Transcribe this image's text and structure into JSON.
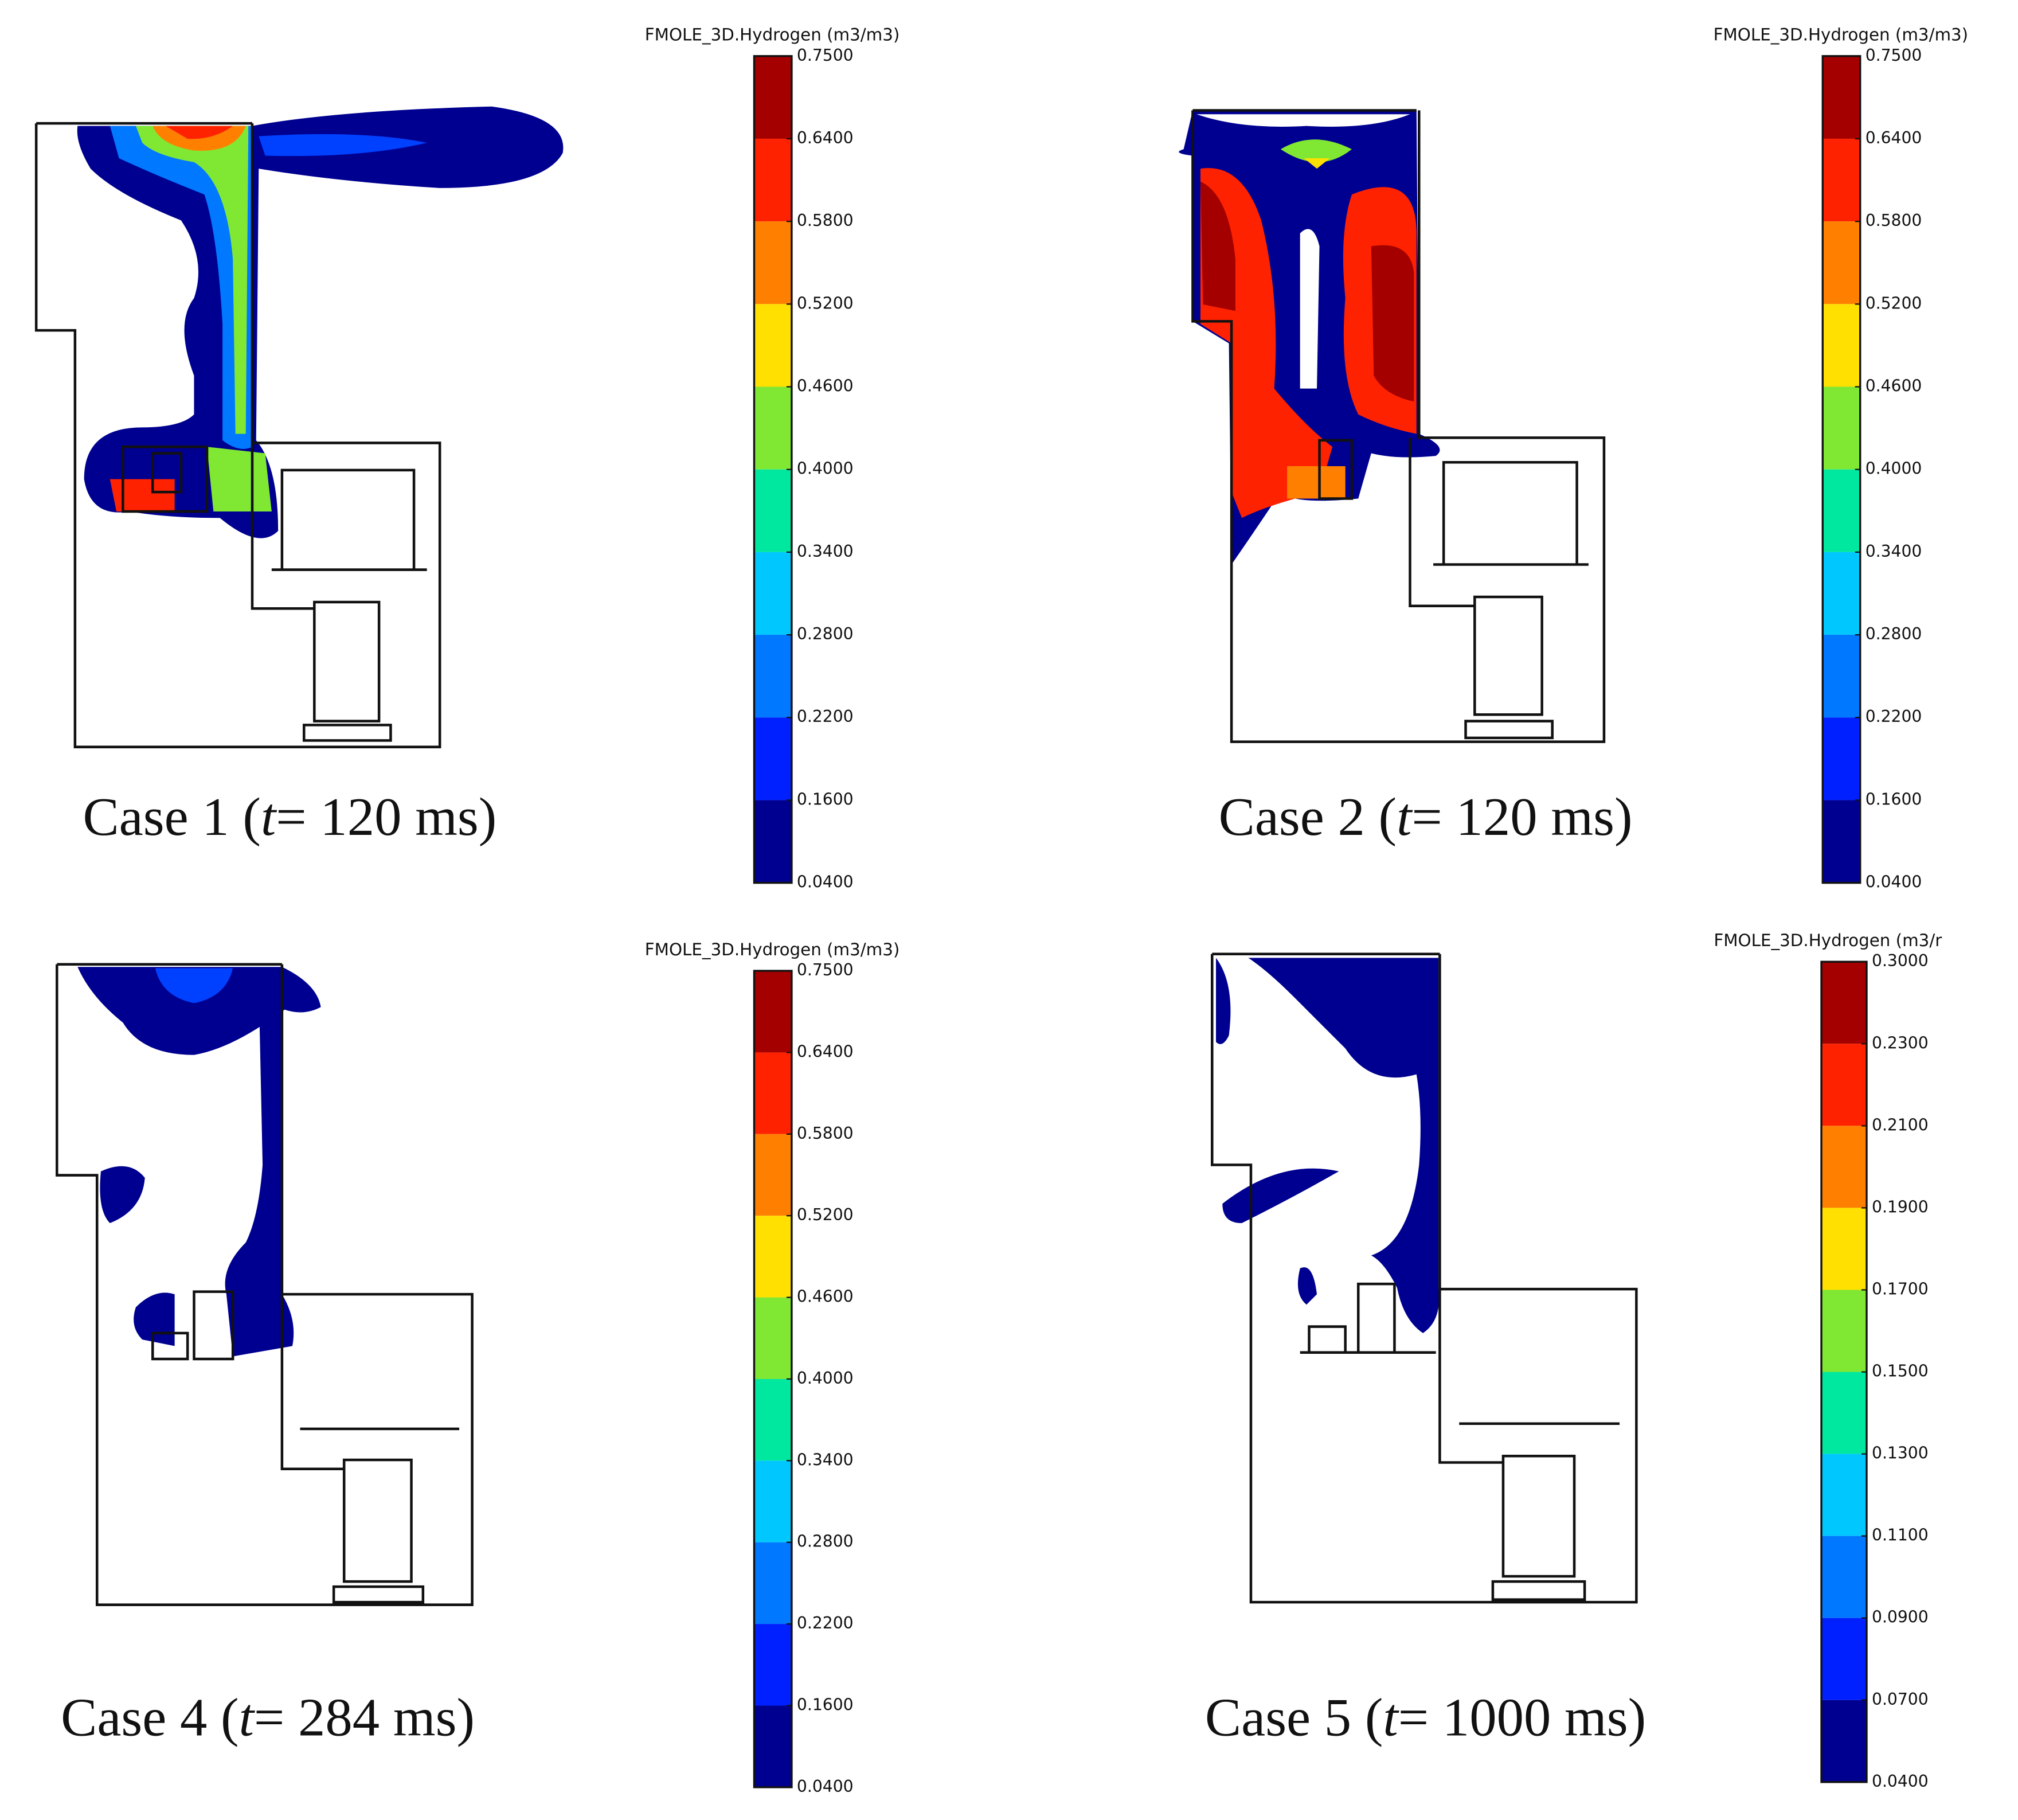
{
  "panels": [
    {
      "caption": {
        "before": "Case 1 (",
        "italic": "t",
        "after": "= 120 ms)"
      },
      "colorbar": {
        "title": "FMOLE_3D.Hydrogen (m3/m3)",
        "colors": [
          "#a50000",
          "#ff2200",
          "#ff8000",
          "#ffe000",
          "#80e832",
          "#00e8a0",
          "#00c8ff",
          "#0078ff",
          "#0020ff",
          "#000090"
        ],
        "ticks": [
          {
            "value": 0.75,
            "label": "0.7500"
          },
          {
            "value": 0.64,
            "label": "0.6400"
          },
          {
            "value": 0.58,
            "label": "0.5800"
          },
          {
            "value": 0.52,
            "label": "0.5200"
          },
          {
            "value": 0.46,
            "label": "0.4600"
          },
          {
            "value": 0.4,
            "label": "0.4000"
          },
          {
            "value": 0.34,
            "label": "0.3400"
          },
          {
            "value": 0.28,
            "label": "0.2800"
          },
          {
            "value": 0.22,
            "label": "0.2200"
          },
          {
            "value": 0.16,
            "label": "0.1600"
          },
          {
            "value": 0.04,
            "label": "0.0400"
          }
        ]
      }
    },
    {
      "caption": {
        "before": "Case 2 (",
        "italic": "t",
        "after": "= 120 ms)"
      },
      "colorbar": {
        "title": "FMOLE_3D.Hydrogen (m3/m3)",
        "colors": [
          "#a50000",
          "#ff2200",
          "#ff8000",
          "#ffe000",
          "#80e832",
          "#00e8a0",
          "#00c8ff",
          "#0078ff",
          "#0020ff",
          "#000090"
        ],
        "ticks": [
          {
            "value": 0.75,
            "label": "0.7500"
          },
          {
            "value": 0.64,
            "label": "0.6400"
          },
          {
            "value": 0.58,
            "label": "0.5800"
          },
          {
            "value": 0.52,
            "label": "0.5200"
          },
          {
            "value": 0.46,
            "label": "0.4600"
          },
          {
            "value": 0.4,
            "label": "0.4000"
          },
          {
            "value": 0.34,
            "label": "0.3400"
          },
          {
            "value": 0.28,
            "label": "0.2800"
          },
          {
            "value": 0.22,
            "label": "0.2200"
          },
          {
            "value": 0.16,
            "label": "0.1600"
          },
          {
            "value": 0.04,
            "label": "0.0400"
          }
        ]
      }
    },
    {
      "caption": {
        "before": "Case 4 (",
        "italic": "t",
        "after": "= 284 ms)"
      },
      "colorbar": {
        "title": "FMOLE_3D.Hydrogen (m3/m3)",
        "colors": [
          "#a50000",
          "#ff2200",
          "#ff8000",
          "#ffe000",
          "#80e832",
          "#00e8a0",
          "#00c8ff",
          "#0078ff",
          "#0020ff",
          "#000090"
        ],
        "ticks": [
          {
            "value": 0.75,
            "label": "0.7500"
          },
          {
            "value": 0.64,
            "label": "0.6400"
          },
          {
            "value": 0.58,
            "label": "0.5800"
          },
          {
            "value": 0.52,
            "label": "0.5200"
          },
          {
            "value": 0.46,
            "label": "0.4600"
          },
          {
            "value": 0.4,
            "label": "0.4000"
          },
          {
            "value": 0.34,
            "label": "0.3400"
          },
          {
            "value": 0.28,
            "label": "0.2800"
          },
          {
            "value": 0.22,
            "label": "0.2200"
          },
          {
            "value": 0.16,
            "label": "0.1600"
          },
          {
            "value": 0.04,
            "label": "0.0400"
          }
        ]
      }
    },
    {
      "caption": {
        "before": "Case 5 (",
        "italic": "t",
        "after": "= 1000 ms)"
      },
      "colorbar": {
        "title": "FMOLE_3D.Hydrogen (m3/r",
        "colors": [
          "#a50000",
          "#ff2200",
          "#ff8000",
          "#ffe000",
          "#80e832",
          "#00e8a0",
          "#00c8ff",
          "#0078ff",
          "#0020ff",
          "#000090"
        ],
        "ticks": [
          {
            "value": 0.3,
            "label": "0.3000"
          },
          {
            "value": 0.23,
            "label": "0.2300"
          },
          {
            "value": 0.21,
            "label": "0.2100"
          },
          {
            "value": 0.19,
            "label": "0.1900"
          },
          {
            "value": 0.17,
            "label": "0.1700"
          },
          {
            "value": 0.15,
            "label": "0.1500"
          },
          {
            "value": 0.13,
            "label": "0.1300"
          },
          {
            "value": 0.11,
            "label": "0.1100"
          },
          {
            "value": 0.09,
            "label": "0.0900"
          },
          {
            "value": 0.07,
            "label": "0.0700"
          },
          {
            "value": 0.04,
            "label": "0.0400"
          }
        ]
      }
    }
  ]
}
